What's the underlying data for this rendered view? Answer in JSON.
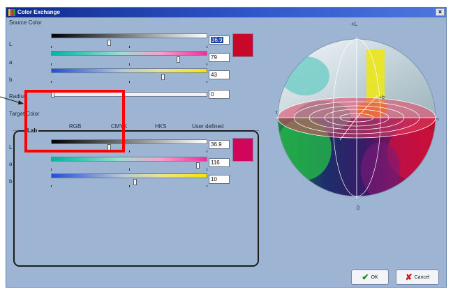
{
  "window": {
    "title": "Color Exchange",
    "close_label": "×"
  },
  "source": {
    "section_label": "Source Color",
    "sliders": [
      {
        "label": "L",
        "value": "36.9",
        "level": 0.37
      },
      {
        "label": "a",
        "value": "79",
        "level": 0.82
      },
      {
        "label": "b",
        "value": "43",
        "level": 0.72
      }
    ],
    "swatch_color": "#c8082b",
    "radius_label": "Radius",
    "radius_value": "0",
    "radius_level": 0.0
  },
  "target": {
    "section_label": "Target Color",
    "tabs": [
      "Lab",
      "RGB",
      "CMYK",
      "HKS",
      "User defined"
    ],
    "sliders": [
      {
        "label": "L",
        "value": "36.9",
        "level": 0.37
      },
      {
        "label": "a",
        "value": "116",
        "level": 0.95
      },
      {
        "label": "b",
        "value": "10",
        "level": 0.54
      }
    ],
    "swatch_color": "#d1065a"
  },
  "sphere": {
    "labels": {
      "plus_l": "+L",
      "minus_a": "−a",
      "plus_a": "+a",
      "plus_b": "+b",
      "minus_b": "b",
      "zero": "0"
    }
  },
  "buttons": {
    "ok_label": "OK",
    "cancel_label": "Cancel"
  },
  "colors": {
    "window_bg": "#9db4d3",
    "titlebar": "#1d3fa4",
    "annotation": "#ff0000"
  }
}
